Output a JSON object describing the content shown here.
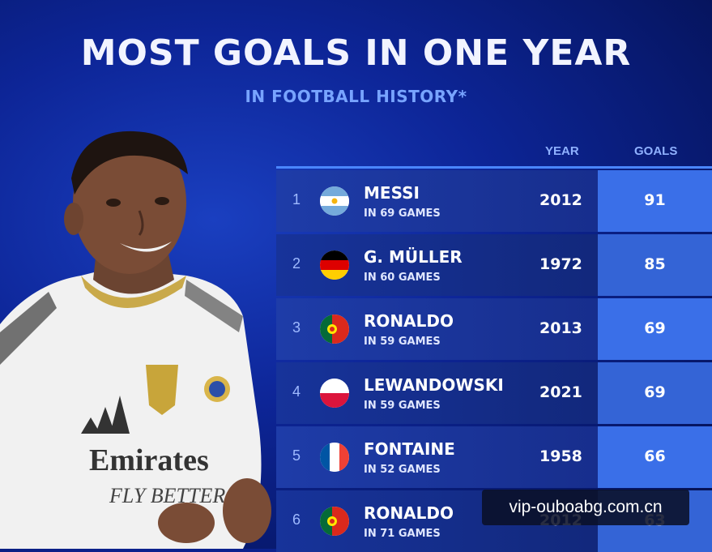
{
  "header": {
    "title": "MOST GOALS IN ONE YEAR",
    "subtitle": "IN FOOTBALL HISTORY*"
  },
  "columns": {
    "year": "YEAR",
    "goals": "GOALS"
  },
  "rows": [
    {
      "rank": "1",
      "name": "MESSI",
      "games": "IN 69 GAMES",
      "year": "2012",
      "goals": "91",
      "flag": "argentina-flag-icon"
    },
    {
      "rank": "2",
      "name": "G. MÜLLER",
      "games": "IN 60 GAMES",
      "year": "1972",
      "goals": "85",
      "flag": "germany-flag-icon"
    },
    {
      "rank": "3",
      "name": "RONALDO",
      "games": "IN 59 GAMES",
      "year": "2013",
      "goals": "69",
      "flag": "portugal-flag-icon"
    },
    {
      "rank": "4",
      "name": "LEWANDOWSKI",
      "games": "IN 59 GAMES",
      "year": "2021",
      "goals": "69",
      "flag": "poland-flag-icon"
    },
    {
      "rank": "5",
      "name": "FONTAINE",
      "games": "IN 52 GAMES",
      "year": "1958",
      "goals": "66",
      "flag": "france-flag-icon"
    },
    {
      "rank": "6",
      "name": "RONALDO",
      "games": "IN 71 GAMES",
      "year": "2012",
      "goals": "63",
      "flag": "portugal-flag-icon"
    }
  ],
  "player_shirt": {
    "sponsor_line1": "Emirates",
    "sponsor_line2": "FLY BETTER"
  },
  "watermark": "vip-ouboabg.com.cn",
  "colors": {
    "background": "#0d2597",
    "accent": "#3a6fe8",
    "subtitle": "#78a4ff"
  }
}
